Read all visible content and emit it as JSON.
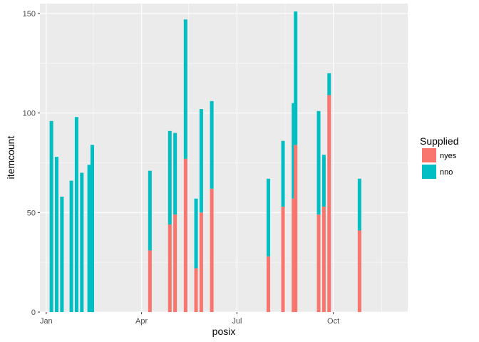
{
  "chart_data": {
    "type": "bar",
    "stacked": true,
    "xlabel": "posix",
    "ylabel": "itemcount",
    "ylim": [
      0,
      155
    ],
    "y_ticks": [
      0,
      50,
      100,
      150
    ],
    "x_ticks": [
      {
        "date": "2016-01-01",
        "label": "Jan"
      },
      {
        "date": "2016-04-01",
        "label": "Apr"
      },
      {
        "date": "2016-07-01",
        "label": "Jul"
      },
      {
        "date": "2016-10-01",
        "label": "Oct"
      }
    ],
    "xlim": [
      "2015-12-26",
      "2016-12-11"
    ],
    "grid": true,
    "legend": {
      "title": "Supplied",
      "position": "right",
      "entries": [
        {
          "label": "nyes",
          "key": "yes",
          "color": "#F8766D"
        },
        {
          "label": "nno",
          "key": "no",
          "color": "#00BFC4"
        }
      ]
    },
    "bars": [
      {
        "date": "2016-01-06",
        "yes": 0,
        "no": 96
      },
      {
        "date": "2016-01-11",
        "yes": 0,
        "no": 78
      },
      {
        "date": "2016-01-16",
        "yes": 0,
        "no": 58
      },
      {
        "date": "2016-01-25",
        "yes": 0,
        "no": 66
      },
      {
        "date": "2016-01-30",
        "yes": 0,
        "no": 98
      },
      {
        "date": "2016-02-04",
        "yes": 0,
        "no": 70
      },
      {
        "date": "2016-02-11",
        "yes": 0,
        "no": 74
      },
      {
        "date": "2016-02-14",
        "yes": 0,
        "no": 84
      },
      {
        "date": "2016-04-09",
        "yes": 31,
        "no": 40
      },
      {
        "date": "2016-04-28",
        "yes": 44,
        "no": 47
      },
      {
        "date": "2016-05-03",
        "yes": 49,
        "no": 41
      },
      {
        "date": "2016-05-13",
        "yes": 77,
        "no": 70
      },
      {
        "date": "2016-05-23",
        "yes": 22,
        "no": 35
      },
      {
        "date": "2016-05-28",
        "yes": 50,
        "no": 52
      },
      {
        "date": "2016-06-07",
        "yes": 62,
        "no": 44
      },
      {
        "date": "2016-07-31",
        "yes": 28,
        "no": 39
      },
      {
        "date": "2016-08-14",
        "yes": 53,
        "no": 33
      },
      {
        "date": "2016-08-24",
        "yes": 57,
        "no": 48
      },
      {
        "date": "2016-08-26",
        "yes": 84,
        "no": 67
      },
      {
        "date": "2016-09-17",
        "yes": 49,
        "no": 52
      },
      {
        "date": "2016-09-22",
        "yes": 53,
        "no": 26
      },
      {
        "date": "2016-09-27",
        "yes": 109,
        "no": 11
      },
      {
        "date": "2016-10-26",
        "yes": 41,
        "no": 26
      }
    ]
  }
}
